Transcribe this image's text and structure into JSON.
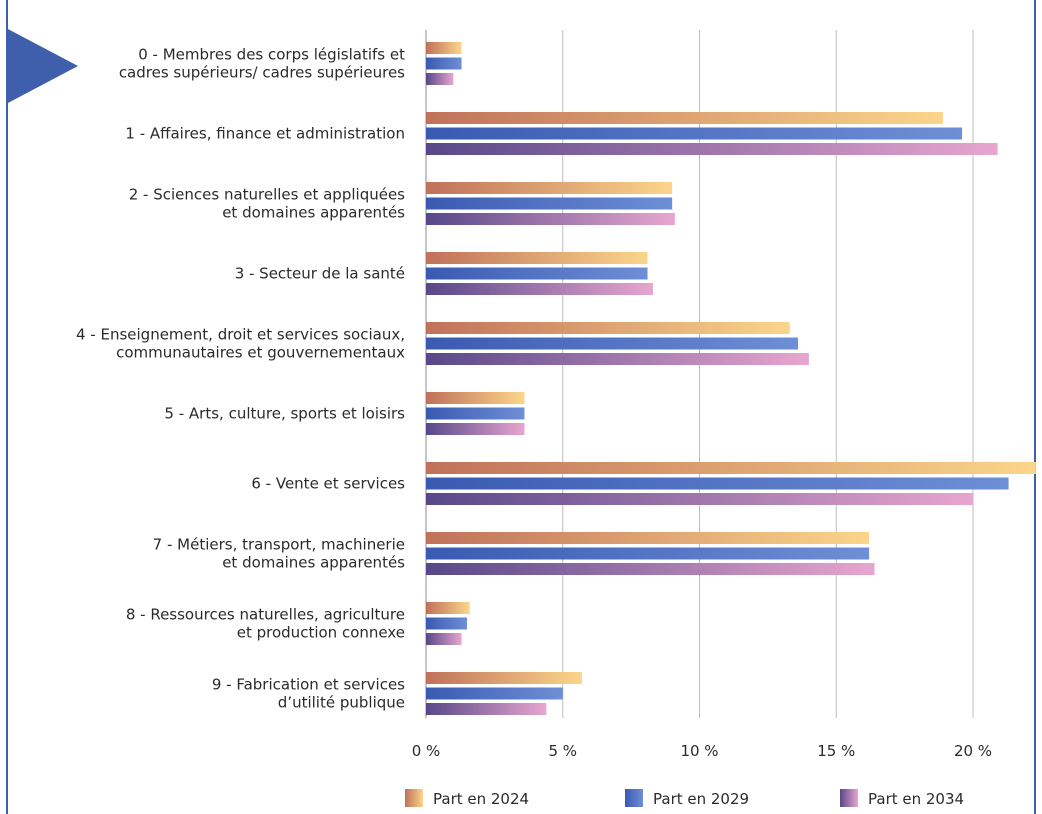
{
  "header": {
    "title": ""
  },
  "chart_data": {
    "type": "bar",
    "orientation": "horizontal",
    "title": "",
    "xlabel": "",
    "ylabel": "",
    "xlim": [
      0,
      22.5
    ],
    "grid": true,
    "legend": "bottom",
    "categories": [
      [
        "0 - Membres des corps législatifs et",
        "cadres supérieurs/ cadres supérieures"
      ],
      [
        "1 - Affaires, finance et administration"
      ],
      [
        "2 - Sciences naturelles et appliquées",
        "et domaines apparentés"
      ],
      [
        "3 - Secteur de la santé"
      ],
      [
        "4 - Enseignement, droit et services sociaux,",
        "communautaires et gouvernementaux"
      ],
      [
        "5 - Arts, culture, sports et loisirs"
      ],
      [
        "6 - Vente et services"
      ],
      [
        "7 - Métiers, transport, machinerie",
        "et domaines apparentés"
      ],
      [
        "8 - Ressources naturelles, agriculture",
        "et production connexe"
      ],
      [
        "9 - Fabrication et services",
        "d’utilité publique"
      ]
    ],
    "x_ticks": [
      0,
      5,
      10,
      15,
      20
    ],
    "tick_labels": [
      "0 %",
      "5 %",
      "10 %",
      "15 %",
      "20 %"
    ],
    "series": [
      {
        "name": "Part en 2024",
        "colors": [
          "#c0715a",
          "#fbd58a"
        ],
        "values": [
          1.3,
          18.9,
          9.0,
          8.1,
          13.3,
          3.6,
          22.3,
          16.2,
          1.6,
          5.7
        ]
      },
      {
        "name": "Part en 2029",
        "colors": [
          "#3a5ab2",
          "#6e8ed6"
        ],
        "values": [
          1.3,
          19.6,
          9.0,
          8.1,
          13.6,
          3.6,
          21.3,
          16.2,
          1.5,
          5.0
        ]
      },
      {
        "name": "Part en 2034",
        "colors": [
          "#574889",
          "#e8a6cf"
        ],
        "values": [
          1.0,
          20.9,
          9.1,
          8.3,
          14.0,
          3.6,
          20.0,
          16.4,
          1.3,
          4.4
        ]
      }
    ]
  }
}
